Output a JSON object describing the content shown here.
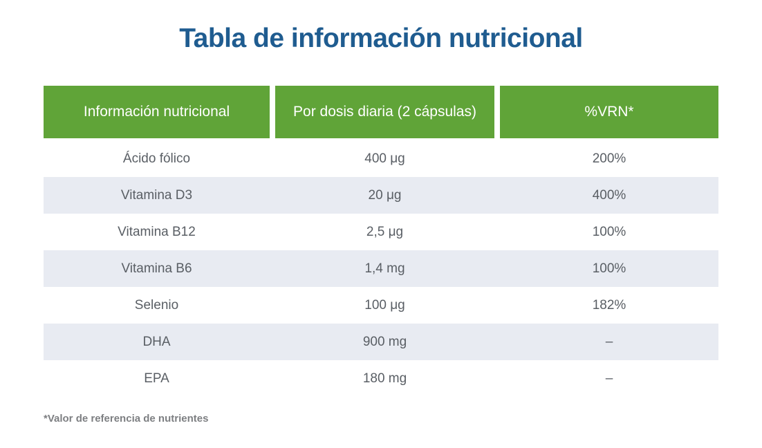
{
  "page": {
    "title": "Tabla de información nutricional"
  },
  "table": {
    "headers": [
      "Información nutricional",
      "Por dosis diaria (2 cápsulas)",
      "%VRN*"
    ],
    "rows": [
      {
        "nutrient": "Ácido fólico",
        "amount": "400 μg",
        "vrn": "200%"
      },
      {
        "nutrient": "Vitamina D3",
        "amount": "20 μg",
        "vrn": "400%"
      },
      {
        "nutrient": "Vitamina B12",
        "amount": "2,5 μg",
        "vrn": "100%"
      },
      {
        "nutrient": "Vitamina B6",
        "amount": "1,4 mg",
        "vrn": "100%"
      },
      {
        "nutrient": "Selenio",
        "amount": "100 μg",
        "vrn": "182%"
      },
      {
        "nutrient": "DHA",
        "amount": "900 mg",
        "vrn": "–"
      },
      {
        "nutrient": "EPA",
        "amount": "180 mg",
        "vrn": "–"
      }
    ]
  },
  "footnote": "*Valor de referencia de nutrientes",
  "colors": {
    "title_blue": "#1f5c90",
    "header_green": "#60a438",
    "stripe_gray": "#e8ebf2",
    "cell_text": "#595e64",
    "footnote_gray": "#7d7f82"
  }
}
